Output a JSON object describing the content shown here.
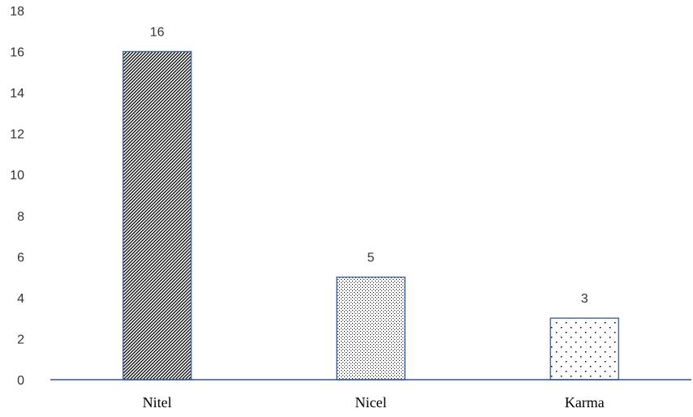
{
  "chart_data": {
    "type": "bar",
    "categories": [
      "Nitel",
      "Nicel",
      "Karma"
    ],
    "values": [
      16,
      5,
      3
    ],
    "data_labels": [
      "16",
      "5",
      "3"
    ],
    "ylim": [
      0,
      18
    ],
    "yticks": [
      "0",
      "2",
      "4",
      "6",
      "8",
      "10",
      "12",
      "14",
      "16",
      "18"
    ],
    "title": "",
    "xlabel": "",
    "ylabel": "",
    "grid": false,
    "bar_patterns": [
      "diagonal-hatch",
      "dense-dots",
      "sparse-dots"
    ],
    "colors": {
      "bar_outline": "#4a6fa5",
      "axis": "#2f5597",
      "pattern_ink": "#000000"
    }
  }
}
